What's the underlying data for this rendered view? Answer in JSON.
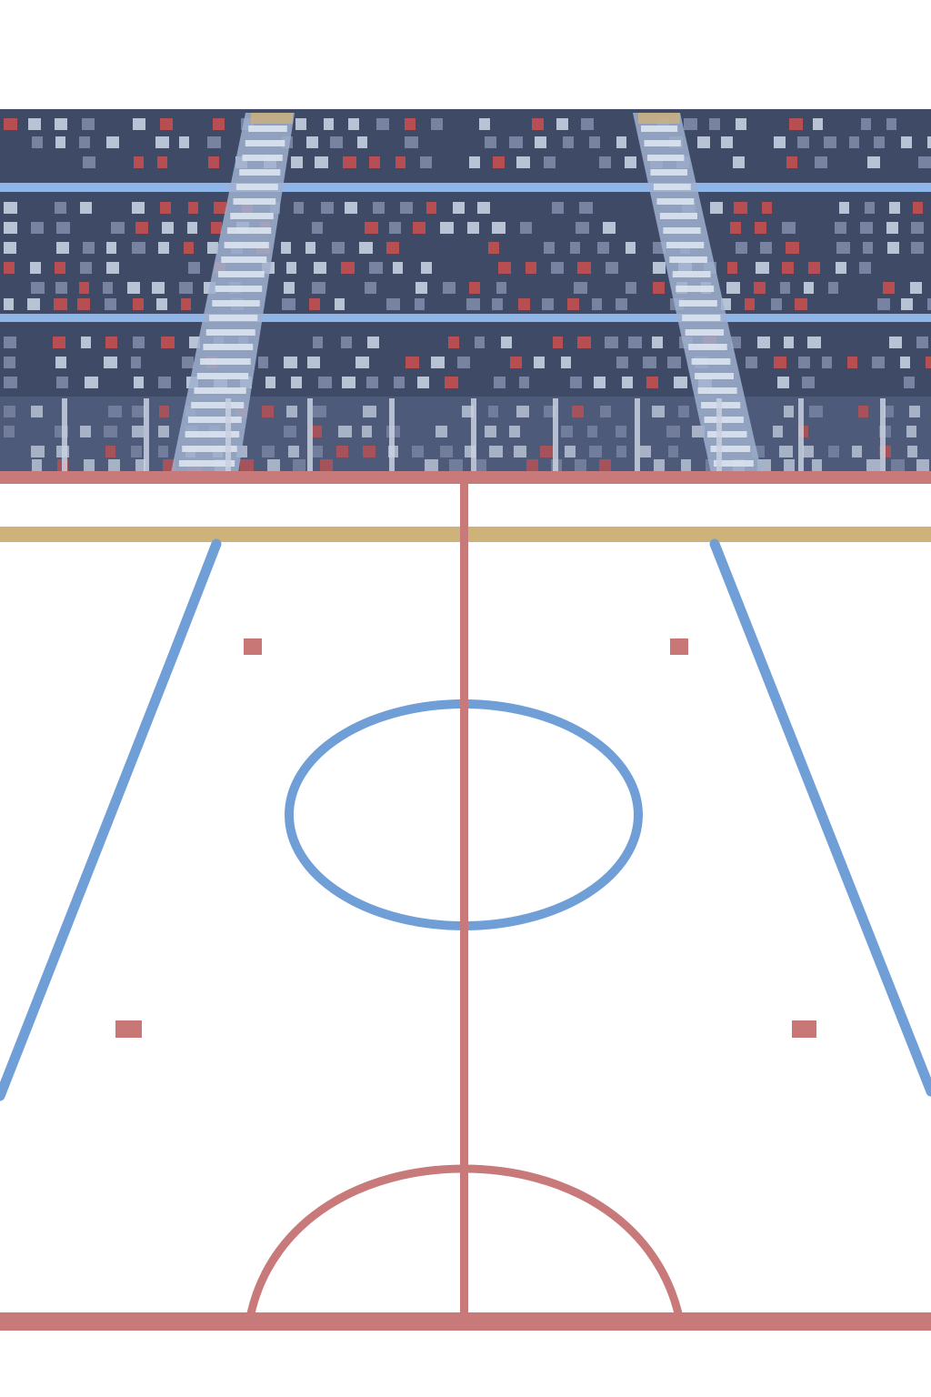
{
  "scene": {
    "type": "ice-hockey-rink-with-stands",
    "palette": {
      "background": "#ffffff",
      "stands_dark": "#3f4a66",
      "stands_mid": "#4d5a7a",
      "stands_row_light": "#8fb6e6",
      "stairs": "#9fb0cf",
      "stair_step": "#dbe3f0",
      "seat_light": "#c6d0e2",
      "seat_mid": "#7d8aa6",
      "seat_red": "#c45050",
      "railing": "#c9d1e1",
      "board_top": "#c87a7a",
      "gold_band": "#cdb27a",
      "blue_line": "#6f9fd6",
      "red_line": "#c87a7a",
      "faceoff_dot": "#c97676"
    },
    "stands": {
      "tiers": 3,
      "aisles": 2
    },
    "rink": {
      "center_line": "red",
      "center_circle": "blue",
      "bottom_arc": "red",
      "faceoff_dots": 4
    }
  }
}
